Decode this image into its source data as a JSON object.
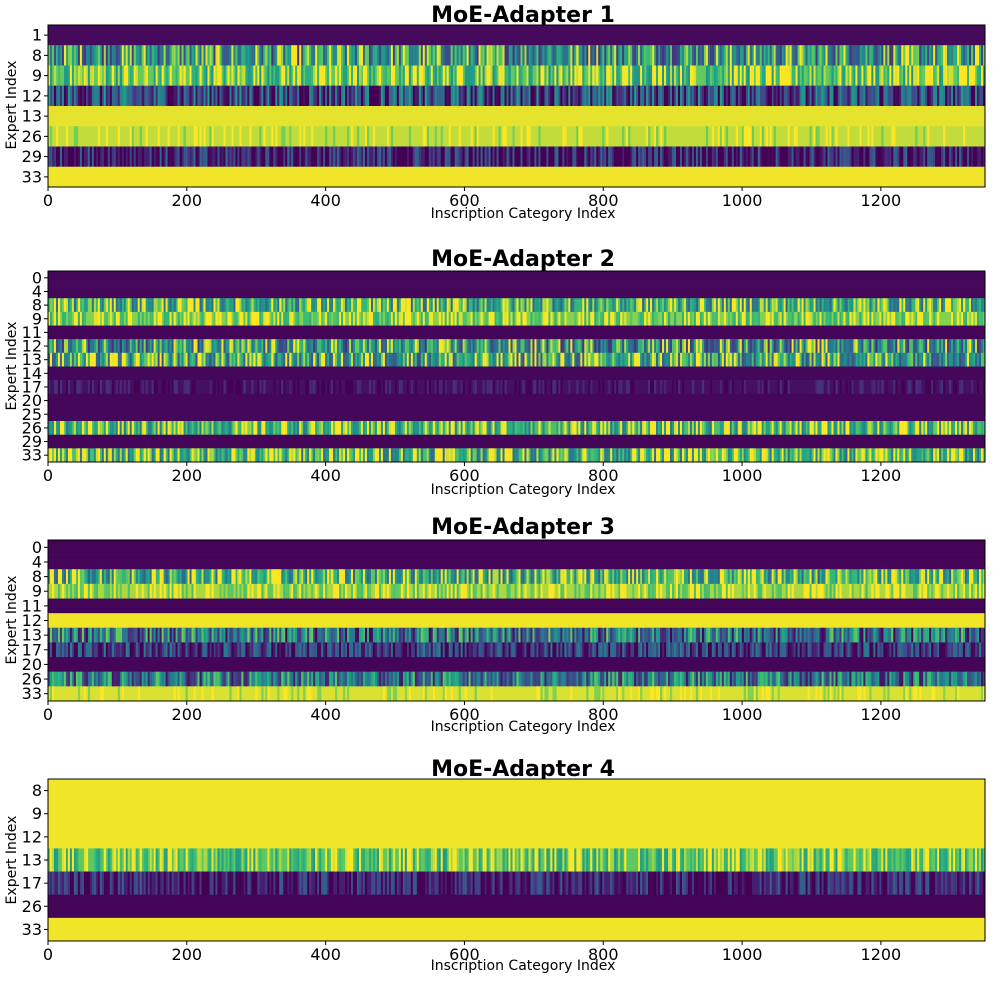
{
  "colors": {
    "low": "#440154",
    "blue": "#31688e",
    "teal": "#21918c",
    "green": "#5ec962",
    "high": "#fde725"
  },
  "chart_data": [
    {
      "type": "heatmap",
      "title": "MoE-Adapter 1",
      "xlabel": "Inscription Category Index",
      "ylabel": "Expert Index",
      "xlim": [
        0,
        1350
      ],
      "xticks": [
        0,
        200,
        400,
        600,
        800,
        1000,
        1200
      ],
      "rows": [
        {
          "expert": "1",
          "mean": 0.03,
          "variability": 0.04
        },
        {
          "expert": "8",
          "mean": 0.62,
          "variability": 0.45
        },
        {
          "expert": "9",
          "mean": 0.86,
          "variability": 0.3
        },
        {
          "expert": "12",
          "mean": 0.25,
          "variability": 0.4
        },
        {
          "expert": "13",
          "mean": 0.98,
          "variability": 0.03
        },
        {
          "expert": "26",
          "mean": 0.95,
          "variability": 0.08
        },
        {
          "expert": "29",
          "mean": 0.1,
          "variability": 0.3
        },
        {
          "expert": "33",
          "mean": 0.99,
          "variability": 0.02
        }
      ]
    },
    {
      "type": "heatmap",
      "title": "MoE-Adapter 2",
      "xlabel": "Inscription Category Index",
      "ylabel": "Expert Index",
      "xlim": [
        0,
        1350
      ],
      "xticks": [
        0,
        200,
        400,
        600,
        800,
        1000,
        1200
      ],
      "rows": [
        {
          "expert": "0",
          "mean": 0.02,
          "variability": 0.03
        },
        {
          "expert": "4",
          "mean": 0.02,
          "variability": 0.03
        },
        {
          "expert": "8",
          "mean": 0.75,
          "variability": 0.4
        },
        {
          "expert": "9",
          "mean": 0.9,
          "variability": 0.2
        },
        {
          "expert": "11",
          "mean": 0.01,
          "variability": 0.0
        },
        {
          "expert": "12",
          "mean": 0.6,
          "variability": 0.45
        },
        {
          "expert": "13",
          "mean": 0.7,
          "variability": 0.45
        },
        {
          "expert": "14",
          "mean": 0.02,
          "variability": 0.02
        },
        {
          "expert": "17",
          "mean": 0.05,
          "variability": 0.12
        },
        {
          "expert": "20",
          "mean": 0.02,
          "variability": 0.03
        },
        {
          "expert": "25",
          "mean": 0.02,
          "variability": 0.03
        },
        {
          "expert": "26",
          "mean": 0.8,
          "variability": 0.35
        },
        {
          "expert": "29",
          "mean": 0.01,
          "variability": 0.0
        },
        {
          "expert": "33",
          "mean": 0.8,
          "variability": 0.4
        }
      ]
    },
    {
      "type": "heatmap",
      "title": "MoE-Adapter 3",
      "xlabel": "Inscription Category Index",
      "ylabel": "Expert Index",
      "xlim": [
        0,
        1350
      ],
      "xticks": [
        0,
        200,
        400,
        600,
        800,
        1000,
        1200
      ],
      "rows": [
        {
          "expert": "0",
          "mean": 0.01,
          "variability": 0.0
        },
        {
          "expert": "4",
          "mean": 0.01,
          "variability": 0.0
        },
        {
          "expert": "8",
          "mean": 0.75,
          "variability": 0.4
        },
        {
          "expert": "9",
          "mean": 0.93,
          "variability": 0.15
        },
        {
          "expert": "11",
          "mean": 0.01,
          "variability": 0.0
        },
        {
          "expert": "12",
          "mean": 0.99,
          "variability": 0.02
        },
        {
          "expert": "13",
          "mean": 0.45,
          "variability": 0.45
        },
        {
          "expert": "17",
          "mean": 0.2,
          "variability": 0.3
        },
        {
          "expert": "20",
          "mean": 0.01,
          "variability": 0.02
        },
        {
          "expert": "26",
          "mean": 0.45,
          "variability": 0.4
        },
        {
          "expert": "33",
          "mean": 0.97,
          "variability": 0.08
        }
      ]
    },
    {
      "type": "heatmap",
      "title": "MoE-Adapter 4",
      "xlabel": "Inscription Category Index",
      "ylabel": "Expert Index",
      "xlim": [
        0,
        1350
      ],
      "xticks": [
        0,
        200,
        400,
        600,
        800,
        1000,
        1200
      ],
      "rows": [
        {
          "expert": "8",
          "mean": 0.99,
          "variability": 0.02
        },
        {
          "expert": "9",
          "mean": 0.99,
          "variability": 0.01
        },
        {
          "expert": "12",
          "mean": 0.99,
          "variability": 0.01
        },
        {
          "expert": "13",
          "mean": 0.85,
          "variability": 0.25
        },
        {
          "expert": "17",
          "mean": 0.1,
          "variability": 0.25
        },
        {
          "expert": "26",
          "mean": 0.01,
          "variability": 0.02
        },
        {
          "expert": "33",
          "mean": 0.99,
          "variability": 0.01
        }
      ]
    }
  ]
}
